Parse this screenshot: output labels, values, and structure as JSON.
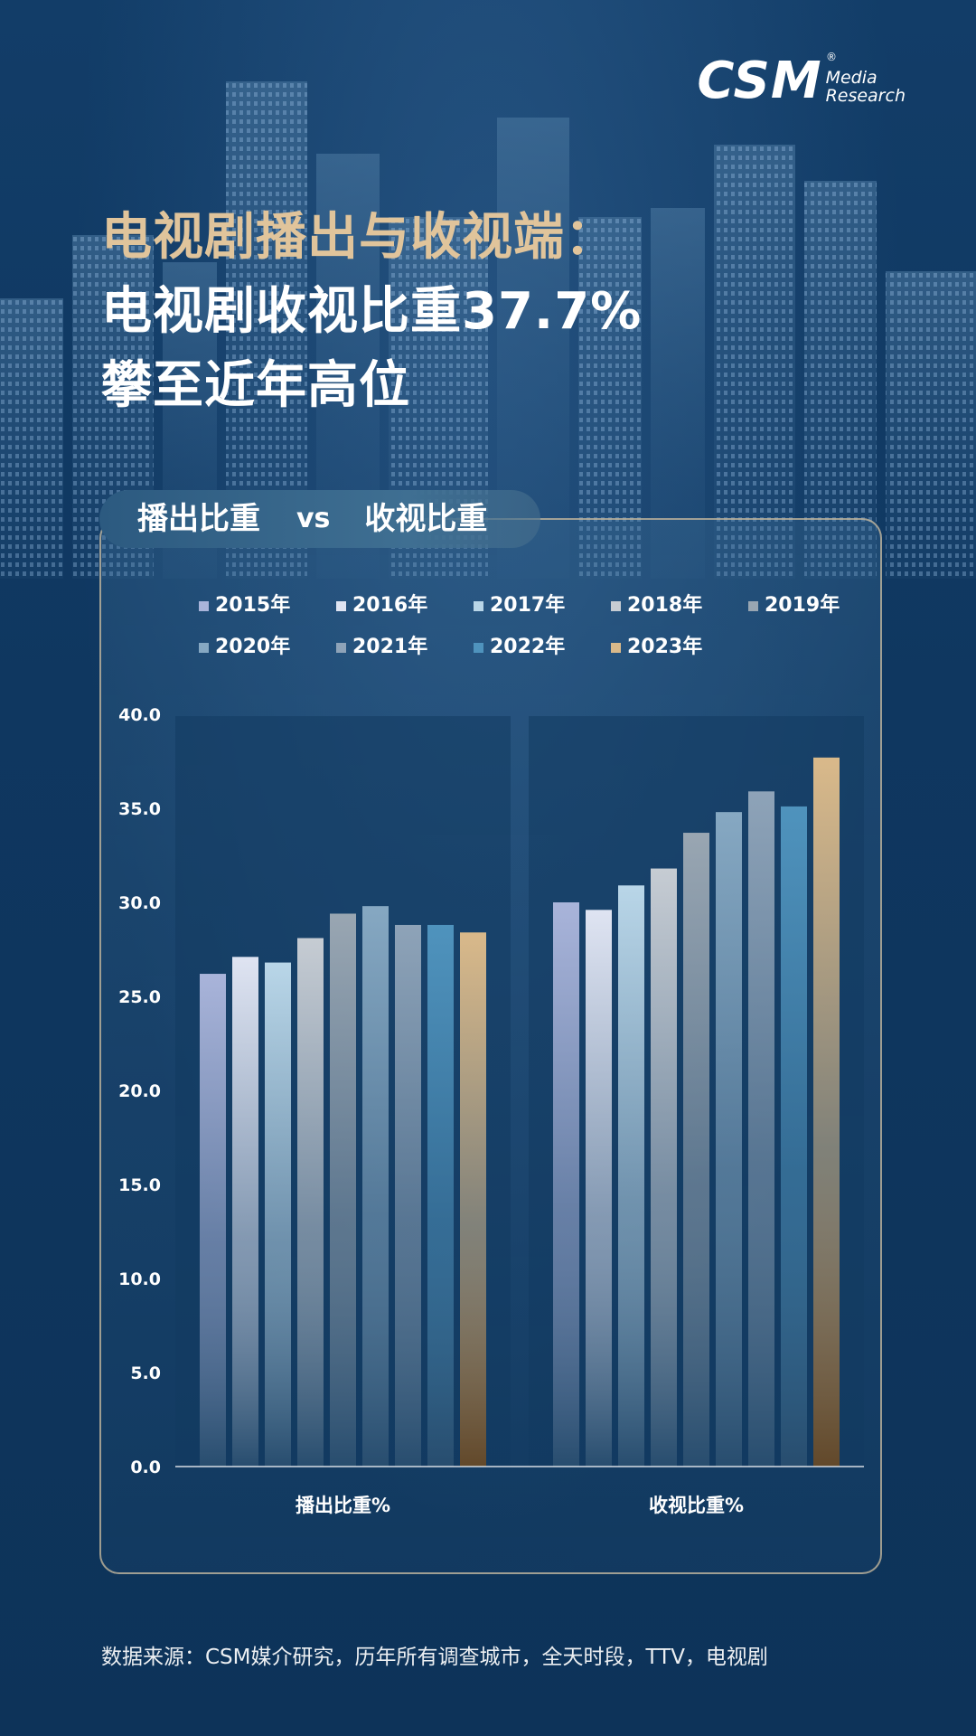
{
  "logo": {
    "main": "CSM",
    "sub_line1": "Media",
    "sub_line2": "Research",
    "reg": "®"
  },
  "title": {
    "line1": "电视剧播出与收视端：",
    "line2": "电视剧收视比重37.7%",
    "line3": "攀至近年高位"
  },
  "panel": {
    "tab_a": "播出比重",
    "tab_vs": "vs",
    "tab_b": "收视比重"
  },
  "colors": {
    "title_gold": "#e0c49b",
    "background": "#0f3760",
    "highlight_2023": "#d9b98a"
  },
  "chart_data": {
    "type": "bar",
    "categories": [
      "播出比重%",
      "收视比重%"
    ],
    "ylim": [
      0,
      40
    ],
    "yticks": [
      "0.0",
      "5.0",
      "10.0",
      "15.0",
      "20.0",
      "25.0",
      "30.0",
      "35.0",
      "40.0"
    ],
    "legend_position": "top",
    "grid": false,
    "series": [
      {
        "name": "2015年",
        "values": [
          26.2,
          30.0
        ],
        "color": "#a9b4da"
      },
      {
        "name": "2016年",
        "values": [
          27.1,
          29.6
        ],
        "color": "#dfe4f2"
      },
      {
        "name": "2017年",
        "values": [
          26.8,
          30.9
        ],
        "color": "#b9d6e8"
      },
      {
        "name": "2018年",
        "values": [
          28.1,
          31.8
        ],
        "color": "#c6ccd3"
      },
      {
        "name": "2019年",
        "values": [
          29.4,
          33.7
        ],
        "color": "#99a6b2"
      },
      {
        "name": "2020年",
        "values": [
          29.8,
          34.8
        ],
        "color": "#86a8c2"
      },
      {
        "name": "2021年",
        "values": [
          28.8,
          35.9
        ],
        "color": "#8ea3b8"
      },
      {
        "name": "2022年",
        "values": [
          28.8,
          35.1
        ],
        "color": "#4f93bd"
      },
      {
        "name": "2023年",
        "values": [
          28.4,
          37.7
        ],
        "color": "#d9b98a"
      }
    ]
  },
  "source": "数据来源：CSM媒介研究，历年所有调查城市，全天时段，TTV，电视剧"
}
